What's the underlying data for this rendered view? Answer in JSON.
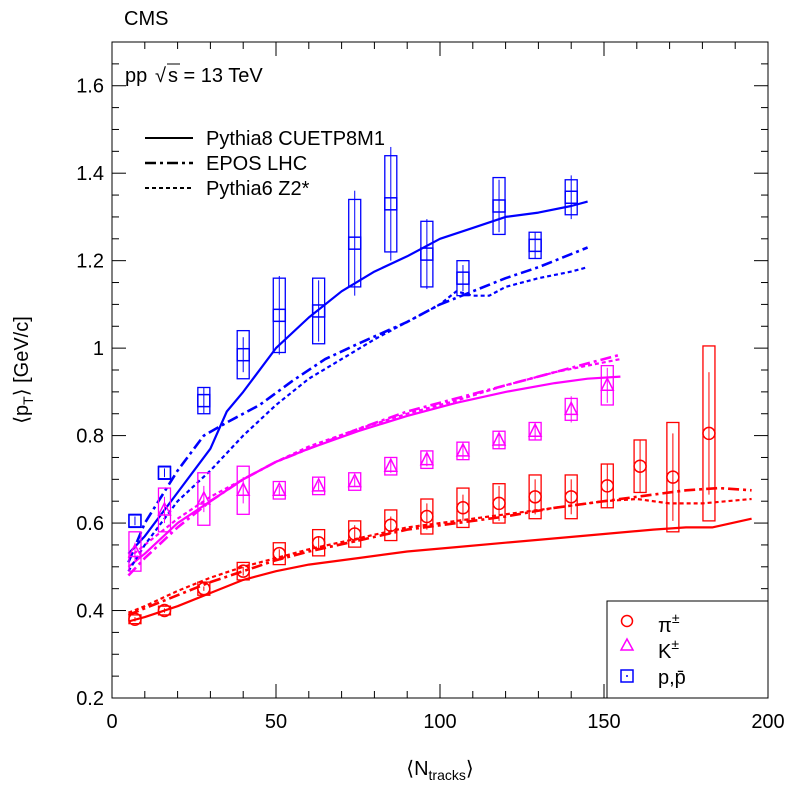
{
  "chart_data": {
    "type": "scatter",
    "experiment": "CMS",
    "energy_label_prefix": "pp",
    "energy_label_value": "s = 13 TeV",
    "xlabel_main": "⟨N",
    "xlabel_sub": "tracks",
    "xlabel_end": "⟩",
    "ylabel_main": "⟨p",
    "ylabel_sub": "T",
    "ylabel_end": "⟩ [GeV/c]",
    "xlim": [
      0,
      200
    ],
    "ylim": [
      0.2,
      1.7
    ],
    "x_ticks": [
      0,
      50,
      100,
      150,
      200
    ],
    "x_tick_labels": [
      "0",
      "50",
      "100",
      "150",
      "200"
    ],
    "y_ticks": [
      0.2,
      0.4,
      0.6,
      0.8,
      1.0,
      1.2,
      1.4,
      1.6
    ],
    "y_tick_labels": [
      "0.2",
      "0.4",
      "0.6",
      "0.8",
      "1",
      "1.2",
      "1.4",
      "1.6"
    ],
    "model_legend": [
      {
        "label": "Pythia8 CUETP8M1",
        "style": "solid"
      },
      {
        "label": "EPOS LHC",
        "style": "dashdot"
      },
      {
        "label": "Pythia6 Z2*",
        "style": "dotted"
      }
    ],
    "species_legend": [
      {
        "species": "pion",
        "label": "π",
        "sup": "±",
        "marker": "circle",
        "color": "#ff0000"
      },
      {
        "species": "kaon",
        "label": "K",
        "sup": "±",
        "marker": "triangle",
        "color": "#ff00ff"
      },
      {
        "species": "proton",
        "label": "p,p̄",
        "sup": "",
        "marker": "square",
        "color": "#0000ff"
      }
    ],
    "series": [
      {
        "name": "pion",
        "color": "#ff0000",
        "marker": "circle",
        "x": [
          7,
          16,
          28,
          40,
          51,
          63,
          74,
          85,
          96,
          107,
          118,
          129,
          140,
          151,
          161,
          171,
          182
        ],
        "y": [
          0.38,
          0.4,
          0.45,
          0.49,
          0.53,
          0.555,
          0.575,
          0.595,
          0.615,
          0.635,
          0.645,
          0.66,
          0.66,
          0.685,
          0.73,
          0.705,
          0.805
        ],
        "syst": [
          0.01,
          0.01,
          0.015,
          0.02,
          0.025,
          0.03,
          0.03,
          0.035,
          0.04,
          0.045,
          0.045,
          0.05,
          0.05,
          0.05,
          0.06,
          0.125,
          0.2
        ],
        "stat": [
          0.005,
          0.005,
          0.005,
          0.01,
          0.01,
          0.015,
          0.02,
          0.02,
          0.03,
          0.03,
          0.04,
          0.04,
          0.04,
          0.05,
          0.06,
          0.1,
          0.14
        ]
      },
      {
        "name": "kaon",
        "color": "#ff00ff",
        "marker": "triangle",
        "x": [
          7,
          16,
          28,
          40,
          51,
          63,
          74,
          85,
          96,
          107,
          118,
          129,
          140,
          151
        ],
        "y": [
          0.535,
          0.63,
          0.655,
          0.675,
          0.675,
          0.685,
          0.695,
          0.73,
          0.745,
          0.765,
          0.79,
          0.81,
          0.86,
          0.915
        ],
        "syst": [
          0.045,
          0.05,
          0.06,
          0.055,
          0.02,
          0.02,
          0.02,
          0.02,
          0.02,
          0.02,
          0.02,
          0.02,
          0.025,
          0.045
        ],
        "stat": [
          0.02,
          0.03,
          0.03,
          0.03,
          0.01,
          0.01,
          0.01,
          0.015,
          0.015,
          0.02,
          0.02,
          0.02,
          0.03,
          0.04
        ]
      },
      {
        "name": "proton",
        "color": "#0000ff",
        "marker": "square",
        "x": [
          7,
          16,
          28,
          40,
          51,
          63,
          74,
          85,
          96,
          107,
          118,
          129,
          140
        ],
        "y": [
          0.605,
          0.715,
          0.88,
          0.985,
          1.075,
          1.085,
          1.24,
          1.33,
          1.215,
          1.16,
          1.325,
          1.235,
          1.345
        ],
        "syst": [
          0.015,
          0.015,
          0.03,
          0.055,
          0.085,
          0.075,
          0.1,
          0.11,
          0.075,
          0.04,
          0.065,
          0.03,
          0.04
        ],
        "stat": [
          0.01,
          0.01,
          0.03,
          0.04,
          0.09,
          0.07,
          0.12,
          0.13,
          0.08,
          0.03,
          0.06,
          0.03,
          0.05
        ]
      }
    ],
    "model_curves": [
      {
        "species": "pion",
        "model": "Pythia8 CUETP8M1",
        "style": "solid",
        "color": "#ff0000",
        "x": [
          5,
          10,
          20,
          30,
          40,
          50,
          60,
          75,
          90,
          105,
          120,
          135,
          150,
          165,
          175,
          183,
          195
        ],
        "y": [
          0.375,
          0.385,
          0.41,
          0.44,
          0.47,
          0.49,
          0.505,
          0.52,
          0.535,
          0.545,
          0.555,
          0.565,
          0.575,
          0.585,
          0.59,
          0.59,
          0.61
        ]
      },
      {
        "species": "pion",
        "model": "EPOS LHC",
        "style": "dashdot",
        "color": "#ff0000",
        "x": [
          5,
          10,
          20,
          30,
          40,
          50,
          60,
          75,
          90,
          105,
          120,
          135,
          150,
          165,
          175,
          185,
          195
        ],
        "y": [
          0.39,
          0.405,
          0.435,
          0.465,
          0.49,
          0.515,
          0.535,
          0.56,
          0.585,
          0.6,
          0.615,
          0.635,
          0.65,
          0.665,
          0.675,
          0.68,
          0.675
        ]
      },
      {
        "species": "pion",
        "model": "Pythia6 Z2*",
        "style": "dotted",
        "color": "#ff0000",
        "x": [
          5,
          10,
          20,
          30,
          40,
          50,
          60,
          75,
          90,
          105,
          120,
          135,
          150,
          160,
          170,
          180,
          195
        ],
        "y": [
          0.395,
          0.41,
          0.445,
          0.475,
          0.5,
          0.52,
          0.54,
          0.565,
          0.59,
          0.605,
          0.62,
          0.635,
          0.65,
          0.655,
          0.645,
          0.645,
          0.655
        ]
      },
      {
        "species": "kaon",
        "model": "Pythia8 CUETP8M1",
        "style": "solid",
        "color": "#ff00ff",
        "x": [
          5,
          10,
          20,
          30,
          40,
          50,
          60,
          75,
          90,
          105,
          120,
          135,
          145,
          155
        ],
        "y": [
          0.5,
          0.53,
          0.6,
          0.65,
          0.7,
          0.74,
          0.77,
          0.81,
          0.845,
          0.875,
          0.9,
          0.92,
          0.93,
          0.935
        ]
      },
      {
        "species": "kaon",
        "model": "EPOS LHC",
        "style": "dashdot",
        "color": "#ff00ff",
        "x": [
          5,
          10,
          20,
          30,
          40,
          50,
          60,
          75,
          90,
          105,
          120,
          135,
          145,
          155
        ],
        "y": [
          0.48,
          0.52,
          0.59,
          0.65,
          0.7,
          0.74,
          0.77,
          0.815,
          0.855,
          0.885,
          0.915,
          0.945,
          0.965,
          0.985
        ]
      },
      {
        "species": "kaon",
        "model": "Pythia6 Z2*",
        "style": "dotted",
        "color": "#ff00ff",
        "x": [
          5,
          10,
          20,
          30,
          40,
          50,
          60,
          75,
          90,
          105,
          120,
          135,
          145,
          155
        ],
        "y": [
          0.52,
          0.55,
          0.61,
          0.66,
          0.7,
          0.74,
          0.775,
          0.815,
          0.85,
          0.88,
          0.915,
          0.945,
          0.96,
          0.975
        ]
      },
      {
        "species": "proton",
        "model": "Pythia8 CUETP8M1",
        "style": "solid",
        "color": "#0000ff",
        "x": [
          5,
          10,
          20,
          30,
          35,
          40,
          50,
          60,
          70,
          80,
          90,
          100,
          110,
          120,
          130,
          140,
          145
        ],
        "y": [
          0.53,
          0.57,
          0.67,
          0.77,
          0.855,
          0.9,
          1.0,
          1.07,
          1.13,
          1.175,
          1.21,
          1.25,
          1.275,
          1.3,
          1.31,
          1.325,
          1.335
        ]
      },
      {
        "species": "proton",
        "model": "EPOS LHC",
        "style": "dashdot",
        "color": "#0000ff",
        "x": [
          5,
          10,
          20,
          28,
          35,
          45,
          55,
          65,
          75,
          90,
          100,
          110,
          120,
          130,
          140,
          145
        ],
        "y": [
          0.51,
          0.6,
          0.72,
          0.8,
          0.83,
          0.87,
          0.925,
          0.975,
          1.01,
          1.06,
          1.1,
          1.13,
          1.16,
          1.185,
          1.215,
          1.23
        ]
      },
      {
        "species": "proton",
        "model": "Pythia6 Z2*",
        "style": "dotted",
        "color": "#0000ff",
        "x": [
          5,
          10,
          20,
          30,
          40,
          50,
          60,
          70,
          80,
          90,
          100,
          105,
          110,
          115,
          120,
          130,
          140,
          145
        ],
        "y": [
          0.49,
          0.55,
          0.65,
          0.72,
          0.8,
          0.87,
          0.93,
          0.975,
          1.02,
          1.06,
          1.1,
          1.13,
          1.12,
          1.12,
          1.14,
          1.16,
          1.175,
          1.185
        ]
      }
    ]
  }
}
